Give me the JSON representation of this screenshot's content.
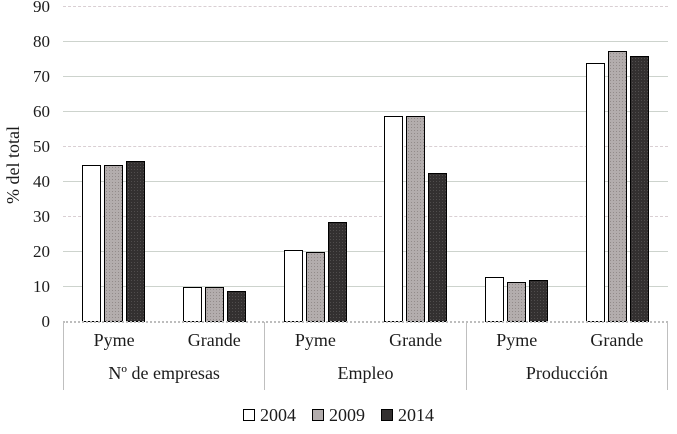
{
  "chart_data": {
    "type": "bar",
    "title": "",
    "xlabel": "",
    "ylabel": "% del total",
    "ylim": [
      0,
      90
    ],
    "yticks": [
      0,
      10,
      20,
      30,
      40,
      50,
      60,
      70,
      80,
      90
    ],
    "dashed_gridlines": [
      30,
      50,
      90
    ],
    "grid": true,
    "legend_position": "bottom",
    "groups": [
      {
        "label": "Nº de empresas",
        "subcategories": [
          "Pyme",
          "Grande"
        ]
      },
      {
        "label": "Empleo",
        "subcategories": [
          "Pyme",
          "Grande"
        ]
      },
      {
        "label": "Producción",
        "subcategories": [
          "Pyme",
          "Grande"
        ]
      }
    ],
    "categories": [
      "Pyme",
      "Grande",
      "Pyme",
      "Grande",
      "Pyme",
      "Grande"
    ],
    "series": [
      {
        "name": "2004",
        "color": "#ffffff",
        "texture": "none",
        "values": [
          45,
          10,
          20.5,
          59,
          13,
          74
        ]
      },
      {
        "name": "2009",
        "color": "#b3adad",
        "texture": "dots-light",
        "values": [
          45,
          10,
          20,
          59,
          11.3,
          77.5
        ]
      },
      {
        "name": "2014",
        "color": "#333030",
        "texture": "dots-dark",
        "values": [
          46,
          9,
          28.5,
          42.5,
          12,
          76
        ]
      }
    ]
  },
  "colors": {
    "gridline_solid": "#cdd3cd",
    "gridline_dashed": "#d9cfd3",
    "baseline": "#bdbdbd",
    "band_border": "#bfbfbf",
    "bar_border": "#000000"
  }
}
